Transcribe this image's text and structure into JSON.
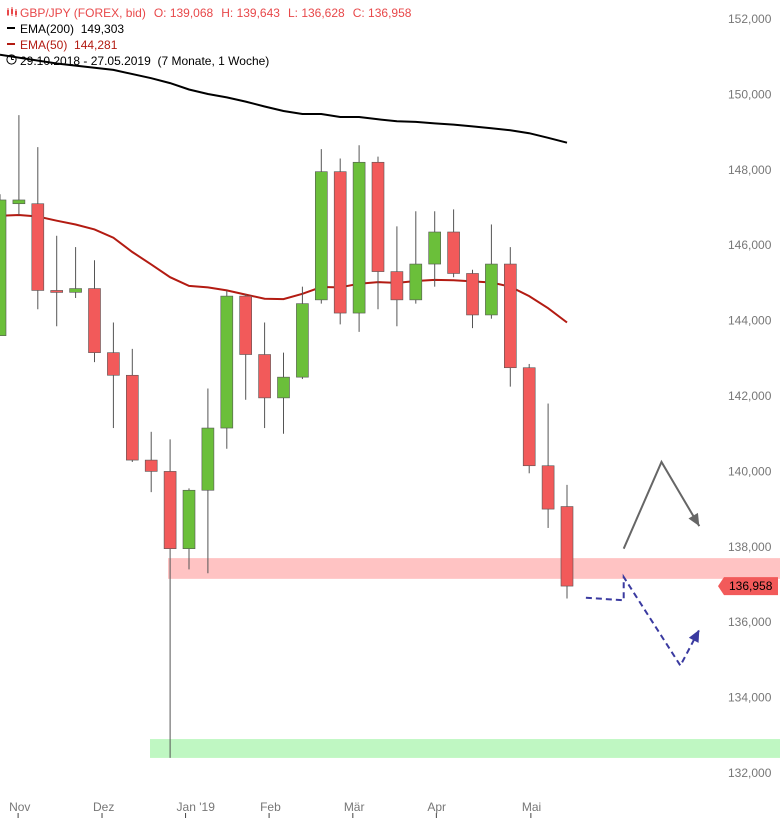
{
  "legend": {
    "symbol_icon": "candle-icon",
    "instrument": "GBP/JPY (FOREX, bid)",
    "open_label": "O:",
    "open": "139,068",
    "high_label": "H:",
    "high": "139,643",
    "low_label": "L:",
    "low": "136,628",
    "close_label": "C:",
    "close": "136,958",
    "ema200_label": "EMA(200)",
    "ema200_value": "149,303",
    "ema50_label": "EMA(50)",
    "ema50_value": "144,281",
    "date_range": "29.10.2018 - 27.05.2019",
    "period": "(7 Monate, 1 Woche)"
  },
  "colors": {
    "up": "#6bbf3a",
    "down": "#f25a5a",
    "ema200": "#000000",
    "ema50": "#b31b12",
    "resistance_zone": "#ffc3c3",
    "support_zone": "#bff7c2",
    "forecast_primary": "#666666",
    "forecast_alternative": "#3a3aa0"
  },
  "chart_data": {
    "type": "candlestick",
    "interval": "weekly",
    "ylim": [
      131700,
      152600
    ],
    "y_ticks": [
      "152,000",
      "150,000",
      "148,000",
      "146,000",
      "144,000",
      "142,000",
      "140,000",
      "138,000",
      "136,000",
      "134,000",
      "132,000"
    ],
    "y_tick_values": [
      152000,
      150000,
      148000,
      146000,
      144000,
      142000,
      140000,
      138000,
      136000,
      134000,
      132000
    ],
    "x_labels": [
      "Nov",
      "Dez",
      "Jan '19",
      "Feb",
      "Mär",
      "Apr",
      "Mai"
    ],
    "x_label_index": [
      0.27,
      4.71,
      9.13,
      13.55,
      17.98,
      22.4,
      27.4
    ],
    "last_price_label": "136,958",
    "last_price": 136958,
    "candles": [
      {
        "o": 143600,
        "h": 147350,
        "l": 143600,
        "c": 147200
      },
      {
        "o": 147100,
        "h": 149450,
        "l": 146800,
        "c": 147200
      },
      {
        "o": 147100,
        "h": 148600,
        "l": 144300,
        "c": 144800
      },
      {
        "o": 144800,
        "h": 146250,
        "l": 143850,
        "c": 144750
      },
      {
        "o": 144750,
        "h": 145950,
        "l": 144600,
        "c": 144850
      },
      {
        "o": 144850,
        "h": 145600,
        "l": 142900,
        "c": 143150
      },
      {
        "o": 143150,
        "h": 143950,
        "l": 141150,
        "c": 142550
      },
      {
        "o": 142550,
        "h": 143250,
        "l": 140250,
        "c": 140300
      },
      {
        "o": 140300,
        "h": 141050,
        "l": 139450,
        "c": 140000
      },
      {
        "o": 140000,
        "h": 140850,
        "l": 132400,
        "c": 137950
      },
      {
        "o": 137950,
        "h": 139550,
        "l": 137400,
        "c": 139500
      },
      {
        "o": 139500,
        "h": 142200,
        "l": 137300,
        "c": 141150
      },
      {
        "o": 141150,
        "h": 144800,
        "l": 140600,
        "c": 144650
      },
      {
        "o": 144650,
        "h": 144700,
        "l": 141900,
        "c": 143100
      },
      {
        "o": 143100,
        "h": 143950,
        "l": 141150,
        "c": 141950
      },
      {
        "o": 141950,
        "h": 143150,
        "l": 141000,
        "c": 142500
      },
      {
        "o": 142500,
        "h": 144900,
        "l": 142450,
        "c": 144450
      },
      {
        "o": 144550,
        "h": 148550,
        "l": 144450,
        "c": 147950
      },
      {
        "o": 147950,
        "h": 148300,
        "l": 143900,
        "c": 144200
      },
      {
        "o": 144200,
        "h": 148650,
        "l": 143700,
        "c": 148200
      },
      {
        "o": 148200,
        "h": 148350,
        "l": 144300,
        "c": 145300
      },
      {
        "o": 145300,
        "h": 146500,
        "l": 143850,
        "c": 144550
      },
      {
        "o": 144550,
        "h": 146900,
        "l": 144450,
        "c": 145500
      },
      {
        "o": 145500,
        "h": 146900,
        "l": 144900,
        "c": 146350
      },
      {
        "o": 146350,
        "h": 146950,
        "l": 145150,
        "c": 145250
      },
      {
        "o": 145250,
        "h": 145350,
        "l": 143800,
        "c": 144150
      },
      {
        "o": 144150,
        "h": 146550,
        "l": 144050,
        "c": 145500
      },
      {
        "o": 145500,
        "h": 145950,
        "l": 142250,
        "c": 142750
      },
      {
        "o": 142750,
        "h": 142850,
        "l": 139950,
        "c": 140150
      },
      {
        "o": 140150,
        "h": 141800,
        "l": 138500,
        "c": 139000
      },
      {
        "o": 139068,
        "h": 139643,
        "l": 136628,
        "c": 136958
      }
    ],
    "ema200": [
      [
        0,
        151050
      ],
      [
        3,
        150820
      ],
      [
        6,
        150650
      ],
      [
        8,
        150430
      ],
      [
        9,
        150300
      ],
      [
        10,
        150130
      ],
      [
        11,
        150010
      ],
      [
        12,
        149920
      ],
      [
        13,
        149810
      ],
      [
        14,
        149680
      ],
      [
        15,
        149560
      ],
      [
        16,
        149480
      ],
      [
        17,
        149480
      ],
      [
        18,
        149400
      ],
      [
        19,
        149400
      ],
      [
        20,
        149340
      ],
      [
        21,
        149290
      ],
      [
        22,
        149270
      ],
      [
        23,
        149230
      ],
      [
        24,
        149200
      ],
      [
        25,
        149150
      ],
      [
        26,
        149100
      ],
      [
        27,
        149050
      ],
      [
        28,
        148970
      ],
      [
        29,
        148850
      ],
      [
        30,
        148720
      ]
    ],
    "ema50": [
      [
        0,
        146780
      ],
      [
        1,
        146800
      ],
      [
        2,
        146760
      ],
      [
        3,
        146650
      ],
      [
        4,
        146550
      ],
      [
        5,
        146420
      ],
      [
        6,
        146200
      ],
      [
        7,
        145820
      ],
      [
        8,
        145490
      ],
      [
        9,
        145150
      ],
      [
        10,
        144920
      ],
      [
        11,
        144880
      ],
      [
        12,
        144800
      ],
      [
        13,
        144690
      ],
      [
        14,
        144580
      ],
      [
        15,
        144570
      ],
      [
        16,
        144710
      ],
      [
        17,
        144890
      ],
      [
        18,
        144880
      ],
      [
        19,
        144980
      ],
      [
        20,
        145020
      ],
      [
        21,
        145000
      ],
      [
        22,
        145050
      ],
      [
        23,
        145080
      ],
      [
        24,
        145070
      ],
      [
        25,
        145040
      ],
      [
        26,
        145010
      ],
      [
        27,
        144900
      ],
      [
        28,
        144650
      ],
      [
        29,
        144330
      ],
      [
        30,
        143950
      ]
    ],
    "zones": [
      {
        "from": 137150,
        "to": 137700,
        "color": "resistance"
      },
      {
        "from": 132400,
        "to": 132900,
        "color": "support"
      }
    ],
    "forecasts": [
      {
        "style": "solid",
        "color": "primary",
        "points": [
          [
            33.0,
            137950
          ],
          [
            35.0,
            140250
          ],
          [
            37.0,
            138550
          ]
        ]
      },
      {
        "style": "dashed",
        "color": "alternative",
        "points": [
          [
            31.0,
            136650
          ],
          [
            33.0,
            136580
          ],
          [
            33.0,
            137200
          ],
          [
            36.0,
            134850
          ],
          [
            37.0,
            135800
          ]
        ]
      }
    ]
  }
}
